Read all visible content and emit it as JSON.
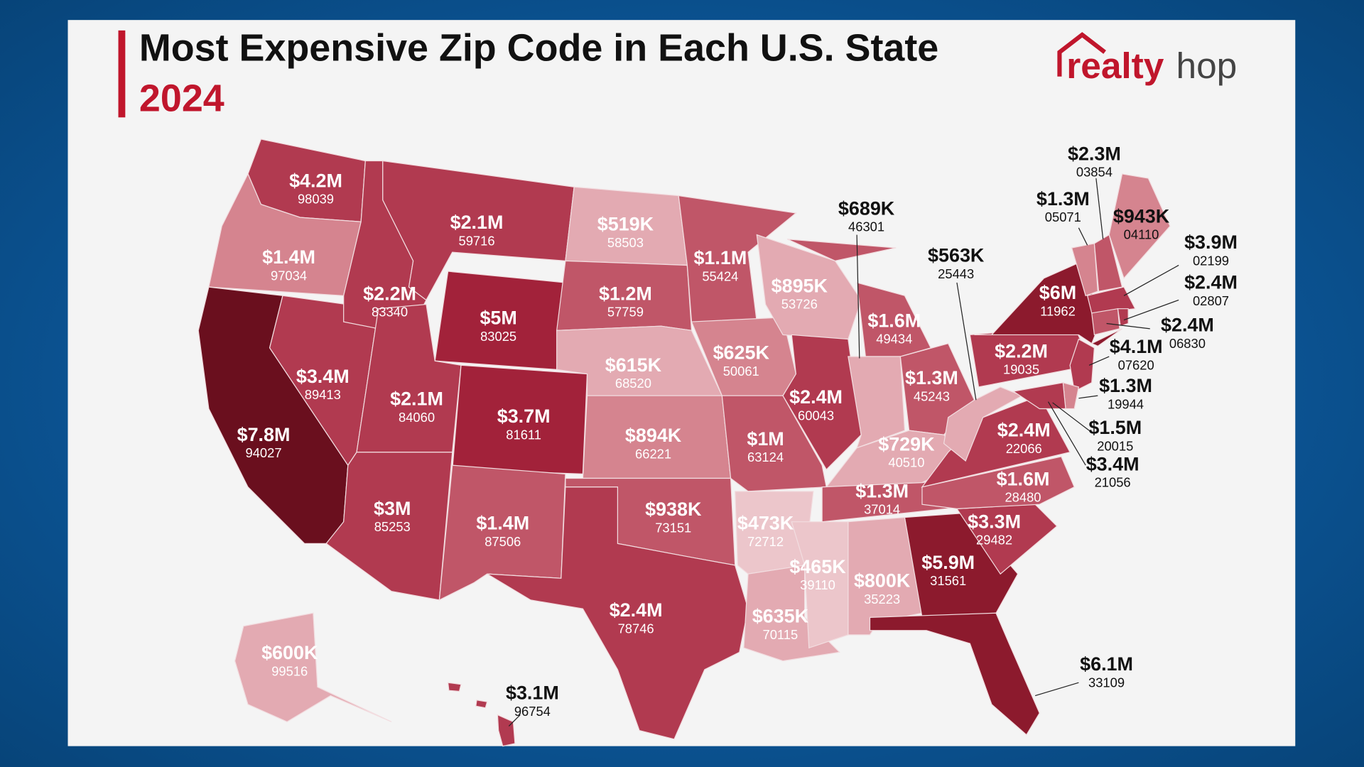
{
  "header": {
    "title": "Most Expensive Zip Code in Each U.S. State",
    "year": "2024"
  },
  "logo": {
    "part1": "realty",
    "part2": "hop"
  },
  "colors": {
    "accent": "#c0162c",
    "background": "#f4f4f4"
  },
  "states": [
    {
      "price": "$4.2M",
      "zip": "98039"
    },
    {
      "price": "$1.4M",
      "zip": "97034"
    },
    {
      "price": "$7.8M",
      "zip": "94027"
    },
    {
      "price": "$3.4M",
      "zip": "89413"
    },
    {
      "price": "$2.2M",
      "zip": "83340"
    },
    {
      "price": "$2.1M",
      "zip": "59716"
    },
    {
      "price": "$5M",
      "zip": "83025"
    },
    {
      "price": "$2.1M",
      "zip": "84060"
    },
    {
      "price": "$3.7M",
      "zip": "81611"
    },
    {
      "price": "$3M",
      "zip": "85253"
    },
    {
      "price": "$1.4M",
      "zip": "87506"
    },
    {
      "price": "$519K",
      "zip": "58503"
    },
    {
      "price": "$1.2M",
      "zip": "57759"
    },
    {
      "price": "$615K",
      "zip": "68520"
    },
    {
      "price": "$894K",
      "zip": "66221"
    },
    {
      "price": "$938K",
      "zip": "73151"
    },
    {
      "price": "$2.4M",
      "zip": "78746"
    },
    {
      "price": "$1.1M",
      "zip": "55424"
    },
    {
      "price": "$625K",
      "zip": "50061"
    },
    {
      "price": "$1M",
      "zip": "63124"
    },
    {
      "price": "$473K",
      "zip": "72712"
    },
    {
      "price": "$635K",
      "zip": "70115"
    },
    {
      "price": "$895K",
      "zip": "53726"
    },
    {
      "price": "$2.4M",
      "zip": "60043"
    },
    {
      "price": "$1.6M",
      "zip": "49434"
    },
    {
      "price": "$689K",
      "zip": "46301"
    },
    {
      "price": "$1.3M",
      "zip": "45243"
    },
    {
      "price": "$729K",
      "zip": "40510"
    },
    {
      "price": "$1.3M",
      "zip": "37014"
    },
    {
      "price": "$465K",
      "zip": "39110"
    },
    {
      "price": "$800K",
      "zip": "35223"
    },
    {
      "price": "$5.9M",
      "zip": "31561"
    },
    {
      "price": "$6.1M",
      "zip": "33109"
    },
    {
      "price": "$3.3M",
      "zip": "29482"
    },
    {
      "price": "$1.6M",
      "zip": "28480"
    },
    {
      "price": "$2.4M",
      "zip": "22066"
    },
    {
      "price": "$563K",
      "zip": "25443"
    },
    {
      "price": "$2.2M",
      "zip": "19035"
    },
    {
      "price": "$6M",
      "zip": "11962"
    },
    {
      "price": "$4.1M",
      "zip": "07620"
    },
    {
      "price": "$1.3M",
      "zip": "19944"
    },
    {
      "price": "$3.4M",
      "zip": "21056"
    },
    {
      "price": "$1.5M",
      "zip": "20015"
    },
    {
      "price": "$1.3M",
      "zip": "05071"
    },
    {
      "price": "$2.3M",
      "zip": "03854"
    },
    {
      "price": "$943K",
      "zip": "04110"
    },
    {
      "price": "$3.9M",
      "zip": "02199"
    },
    {
      "price": "$2.4M",
      "zip": "06830"
    },
    {
      "price": "$2.4M",
      "zip": "02807"
    },
    {
      "price": "$600K",
      "zip": "99516"
    },
    {
      "price": "$3.1M",
      "zip": "96754"
    }
  ]
}
